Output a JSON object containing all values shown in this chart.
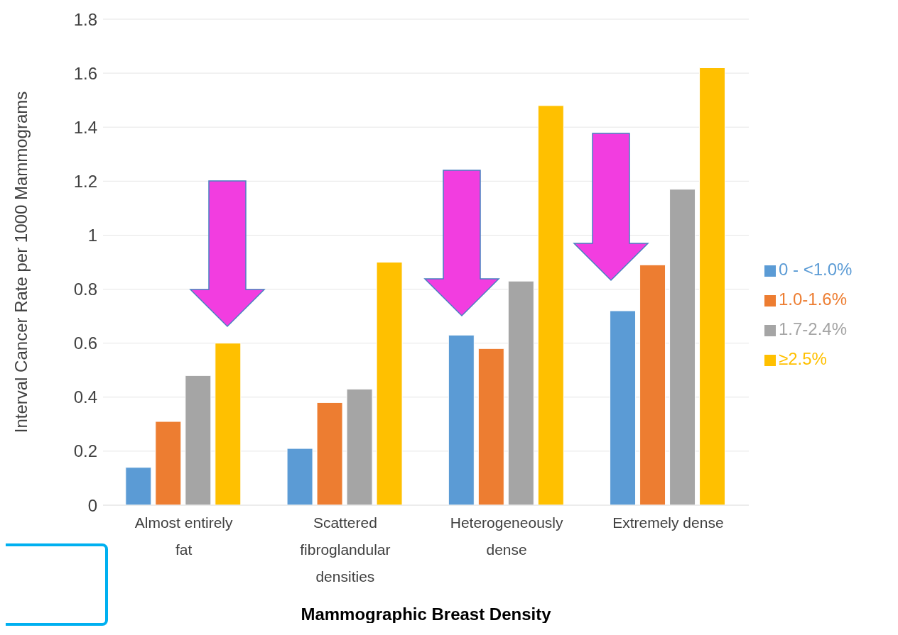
{
  "chart_data": {
    "type": "bar",
    "xlabel": "Mammographic Breast Density",
    "ylabel": "Interval Cancer Rate per 1000 Mammograms",
    "categories": [
      "Almost entirely fat",
      "Scattered fibroglandular densities",
      "Heterogeneously dense",
      "Extremely dense"
    ],
    "series": [
      {
        "name": "0 - <1.0%",
        "color": "#5b9bd5",
        "values": [
          0.14,
          0.21,
          0.63,
          0.72
        ]
      },
      {
        "name": "1.0-1.6%",
        "color": "#ed7d31",
        "values": [
          0.31,
          0.38,
          0.58,
          0.89
        ]
      },
      {
        "name": "1.7-2.4%",
        "color": "#a5a5a5",
        "values": [
          0.48,
          0.43,
          0.83,
          1.17
        ]
      },
      {
        "name": "≥2.5%",
        "color": "#ffc000",
        "values": [
          0.6,
          0.9,
          1.48,
          1.62
        ]
      }
    ],
    "ylim": [
      0,
      1.8
    ],
    "yticks": [
      0,
      0.2,
      0.4,
      0.6,
      0.8,
      1,
      1.2,
      1.4,
      1.6,
      1.8
    ],
    "grid": "y",
    "legend": "right"
  }
}
